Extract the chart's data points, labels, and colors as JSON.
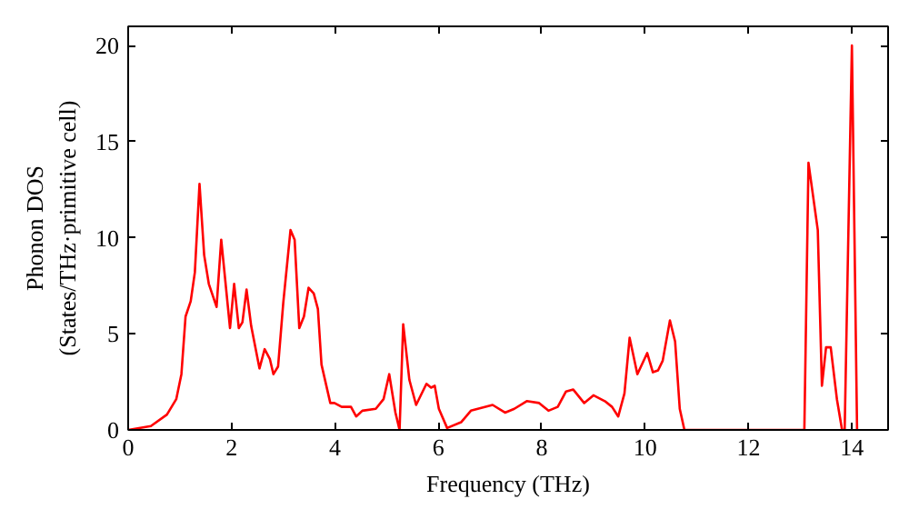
{
  "chart_data": {
    "type": "line",
    "xlabel": "Frequency (THz)",
    "ylabel": "Phonon DOS\n(States/THz·primitive cell)",
    "x": [
      0.0,
      0.44,
      0.75,
      0.93,
      1.03,
      1.11,
      1.21,
      1.29,
      1.38,
      1.47,
      1.56,
      1.71,
      1.8,
      1.97,
      2.05,
      2.14,
      2.21,
      2.29,
      2.38,
      2.54,
      2.64,
      2.74,
      2.81,
      2.9,
      3.0,
      3.14,
      3.22,
      3.31,
      3.4,
      3.49,
      3.59,
      3.67,
      3.74,
      3.91,
      3.99,
      4.13,
      4.31,
      4.41,
      4.53,
      4.79,
      4.94,
      5.05,
      5.17,
      5.25,
      5.32,
      5.44,
      5.57,
      5.77,
      5.86,
      5.93,
      6.01,
      6.17,
      6.44,
      6.63,
      7.05,
      7.29,
      7.47,
      7.71,
      7.95,
      8.13,
      8.31,
      8.47,
      8.61,
      8.82,
      9.0,
      9.22,
      9.36,
      9.48,
      9.6,
      9.7,
      9.85,
      10.04,
      10.15,
      10.25,
      10.34,
      10.48,
      10.58,
      10.67,
      10.76,
      13.08,
      13.16,
      13.34,
      13.42,
      13.5,
      13.59,
      13.71,
      13.81,
      13.86,
      14.0,
      14.1
    ],
    "series": [
      {
        "color": "#ff0000",
        "values": [
          0,
          0.2,
          0.8,
          1.6,
          2.9,
          5.9,
          6.7,
          8.2,
          12.8,
          9.1,
          7.6,
          6.4,
          9.9,
          5.3,
          7.6,
          5.3,
          5.6,
          7.3,
          5.4,
          3.2,
          4.2,
          3.7,
          2.9,
          3.3,
          6.6,
          10.4,
          9.9,
          5.3,
          5.9,
          7.4,
          7.1,
          6.3,
          3.4,
          1.4,
          1.4,
          1.2,
          1.2,
          0.7,
          1.0,
          1.1,
          1.6,
          2.9,
          0.9,
          0,
          5.5,
          2.6,
          1.3,
          2.4,
          2.2,
          2.3,
          1.1,
          0.1,
          0.4,
          1.0,
          1.3,
          0.9,
          1.1,
          1.5,
          1.4,
          1.0,
          1.2,
          2.0,
          2.1,
          1.4,
          1.8,
          1.5,
          1.2,
          0.7,
          1.9,
          4.8,
          2.9,
          4.0,
          3.0,
          3.1,
          3.6,
          5.7,
          4.6,
          1.1,
          0,
          0,
          13.9,
          10.4,
          2.3,
          4.3,
          4.3,
          1.6,
          0,
          0,
          20.0,
          0
        ]
      }
    ],
    "xlim": [
      0,
      14.7
    ],
    "ylim": [
      0,
      21
    ],
    "xticks": [
      0,
      2,
      4,
      6,
      8,
      10,
      12,
      14
    ],
    "yticks": [
      0,
      5,
      10,
      15,
      20
    ],
    "grid": false,
    "line_style": "solid"
  }
}
